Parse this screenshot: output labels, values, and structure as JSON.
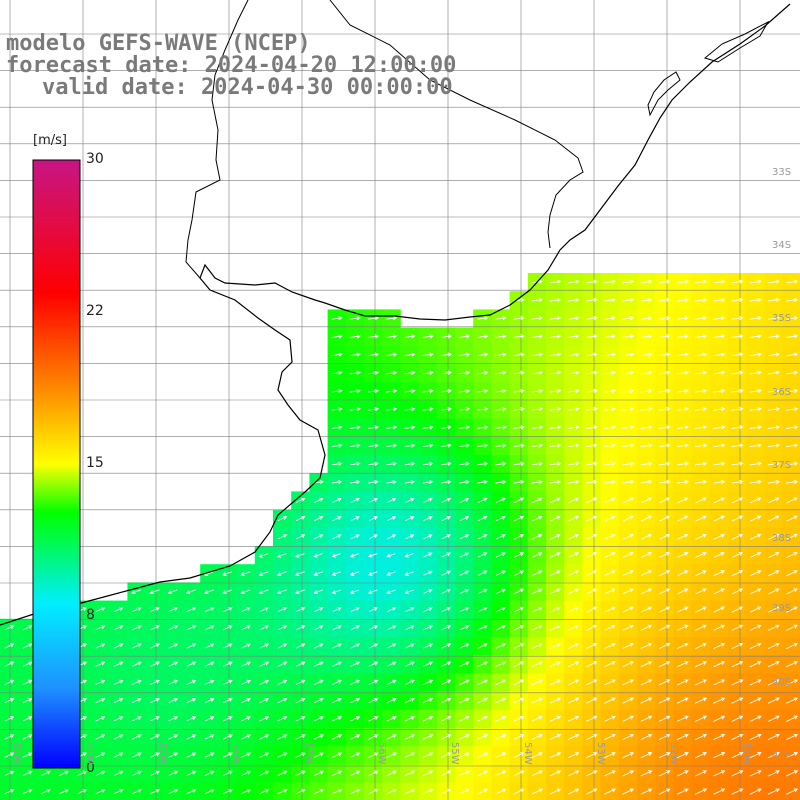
{
  "header": {
    "model": "modelo GEFS-WAVE (NCEP)",
    "forecast": "forecast date: 2024-04-20 12:00:00",
    "valid": "valid date: 2024-04-30 00:00:00"
  },
  "colorbar": {
    "unit": "[m/s]",
    "min": 0,
    "max": 30,
    "ticks": [
      "30",
      "22",
      "15",
      "8",
      "0"
    ],
    "colors": [
      "#0000ff",
      "#1e90ff",
      "#00eeff",
      "#00ff00",
      "#ffff00",
      "#ff8c00",
      "#ff0000",
      "#c71585"
    ]
  },
  "axes": {
    "lat_labels": [
      "33S",
      "34S",
      "35S",
      "36S",
      "37S",
      "38S",
      "39S",
      "40S",
      "41S"
    ],
    "lon_labels": [
      "61W",
      "60W",
      "59W",
      "58W",
      "57W",
      "56W",
      "55W",
      "54W",
      "53W",
      "52W",
      "51W"
    ]
  },
  "map": {
    "region": "Rio de la Plata / Uruguay / Buenos Aires coast",
    "land_color": "#ffffff",
    "coast_color": "#000000",
    "grid_color": "#8a8a8a"
  }
}
